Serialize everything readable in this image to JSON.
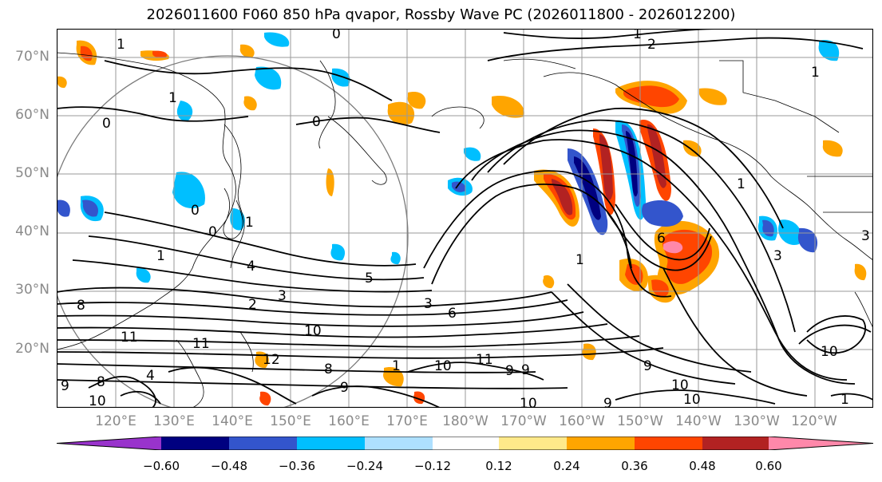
{
  "title": "2026011600 F060 850 hPa qvapor, Rossby Wave PC (2026011800 - 2026012200)",
  "lat_labels": [
    "70°N",
    "60°N",
    "50°N",
    "40°N",
    "30°N",
    "20°N"
  ],
  "lon_labels": [
    "120°E",
    "130°E",
    "140°E",
    "150°E",
    "160°E",
    "170°E",
    "180°W",
    "170°W",
    "160°W",
    "150°W",
    "140°W",
    "130°W",
    "120°W"
  ],
  "colorbar": {
    "colors": [
      "#9933cc",
      "#000080",
      "#3355cc",
      "#00bfff",
      "#aee0ff",
      "#ffffff",
      "#ffe98a",
      "#ffa500",
      "#ff4500",
      "#b22222",
      "#ff88aa"
    ],
    "tick_labels": [
      "−0.60",
      "−0.48",
      "−0.36",
      "−0.24",
      "−0.12",
      "0.12",
      "0.24",
      "0.36",
      "0.48",
      "0.60"
    ]
  },
  "contour_labels": [
    "0",
    "1",
    "2",
    "0",
    "1",
    "0",
    "1",
    "0",
    "0",
    "1",
    "1",
    "4",
    "5",
    "2",
    "3",
    "3",
    "6",
    "10",
    "11",
    "12",
    "8",
    "9",
    "10",
    "11",
    "9",
    "10",
    "9",
    "10",
    "10",
    "1",
    "6",
    "1",
    "1",
    "8",
    "9",
    "10",
    "11",
    "3",
    "4",
    "8",
    "1",
    "10",
    "9",
    "3",
    "9",
    "1"
  ]
}
